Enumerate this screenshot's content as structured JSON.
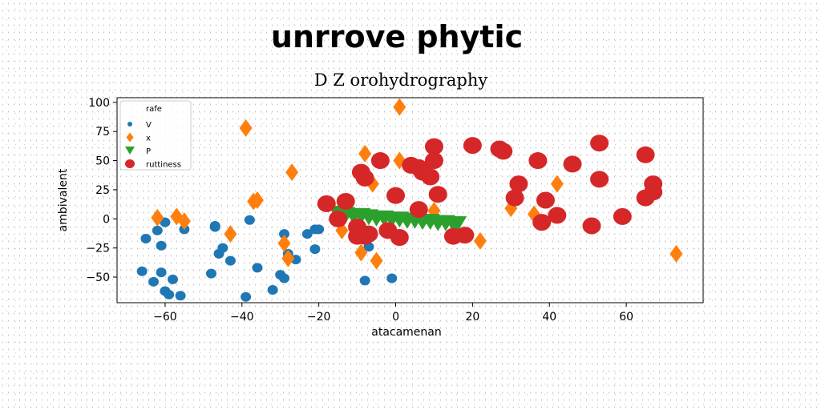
{
  "chart_data": {
    "type": "scatter",
    "title": "unrrove phytic",
    "subtitle": "D Z orohydrography",
    "xlabel": "atacamenan",
    "ylabel": "ambivalent",
    "xlim": [
      -72.5,
      80
    ],
    "ylim": [
      -72,
      104
    ],
    "xticks": [
      -60,
      -40,
      -20,
      0,
      20,
      40,
      60
    ],
    "yticks": [
      -50,
      -25,
      0,
      25,
      50,
      75,
      100
    ],
    "grid": false,
    "legend_position": "upper-left",
    "legend_title": "rafe",
    "series": [
      {
        "name": "V",
        "marker": "circle",
        "color": "#1f77b4",
        "points": [
          [
            -66,
            -45
          ],
          [
            -65,
            -17
          ],
          [
            -63,
            -54
          ],
          [
            -62,
            -10
          ],
          [
            -61,
            -46
          ],
          [
            -61,
            -23
          ],
          [
            -60,
            -3
          ],
          [
            -60,
            -62
          ],
          [
            -59,
            -65
          ],
          [
            -58,
            -52
          ],
          [
            -56,
            -66
          ],
          [
            -55,
            -9
          ],
          [
            -48,
            -47
          ],
          [
            -47,
            -7
          ],
          [
            -47,
            -6
          ],
          [
            -46,
            -30
          ],
          [
            -45,
            -25
          ],
          [
            -43,
            -36
          ],
          [
            -39,
            -67
          ],
          [
            -38,
            -1
          ],
          [
            -36,
            -42
          ],
          [
            -32,
            -61
          ],
          [
            -30,
            -48
          ],
          [
            -29,
            -51
          ],
          [
            -29,
            -13
          ],
          [
            -28,
            -30
          ],
          [
            -26,
            -35
          ],
          [
            -23,
            -13
          ],
          [
            -21,
            -9
          ],
          [
            -21,
            -26
          ],
          [
            -20,
            -9
          ],
          [
            -8,
            -53
          ],
          [
            -7,
            -24
          ],
          [
            -1,
            -51
          ]
        ]
      },
      {
        "name": "x",
        "marker": "diamond",
        "color": "#ff7f0e",
        "points": [
          [
            -62,
            1
          ],
          [
            -57,
            2
          ],
          [
            -55,
            -2
          ],
          [
            -43,
            -13
          ],
          [
            -39,
            78
          ],
          [
            -37,
            15
          ],
          [
            -36,
            16
          ],
          [
            -29,
            -21
          ],
          [
            -28,
            -34
          ],
          [
            -27,
            40
          ],
          [
            -14,
            -10
          ],
          [
            -9,
            -29
          ],
          [
            -9,
            -14
          ],
          [
            -8,
            56
          ],
          [
            -6,
            30
          ],
          [
            -5,
            -36
          ],
          [
            1,
            50
          ],
          [
            1,
            96
          ],
          [
            5,
            45
          ],
          [
            10,
            7
          ],
          [
            22,
            -19
          ],
          [
            30,
            9
          ],
          [
            36,
            4
          ],
          [
            42,
            30
          ],
          [
            73,
            -30
          ]
        ]
      },
      {
        "name": "P",
        "marker": "triangle-down",
        "color": "#2ca02c",
        "points": [
          [
            -15,
            5
          ],
          [
            -13,
            4
          ],
          [
            -11,
            3
          ],
          [
            -9,
            3
          ],
          [
            -7,
            2
          ],
          [
            -5,
            1
          ],
          [
            -3,
            1
          ],
          [
            -1,
            0
          ],
          [
            1,
            0
          ],
          [
            3,
            -1
          ],
          [
            5,
            -1
          ],
          [
            7,
            -2
          ],
          [
            9,
            -2
          ],
          [
            11,
            -3
          ],
          [
            13,
            -3
          ],
          [
            15,
            -4
          ],
          [
            16,
            -4
          ]
        ]
      },
      {
        "name": "ruttiness",
        "marker": "circle",
        "color": "#d62728",
        "points": [
          [
            -18,
            13
          ],
          [
            -15,
            0
          ],
          [
            -13,
            15
          ],
          [
            -10,
            -7
          ],
          [
            -10,
            -15
          ],
          [
            -9,
            40
          ],
          [
            -8,
            35
          ],
          [
            -8,
            -15
          ],
          [
            -7,
            -13
          ],
          [
            -4,
            50
          ],
          [
            -2,
            -10
          ],
          [
            0,
            20
          ],
          [
            1,
            -16
          ],
          [
            4,
            46
          ],
          [
            6,
            8
          ],
          [
            6,
            44
          ],
          [
            7,
            40
          ],
          [
            9,
            36
          ],
          [
            10,
            50
          ],
          [
            10,
            62
          ],
          [
            11,
            21
          ],
          [
            15,
            -15
          ],
          [
            18,
            -14
          ],
          [
            20,
            63
          ],
          [
            27,
            60
          ],
          [
            28,
            58
          ],
          [
            31,
            18
          ],
          [
            32,
            30
          ],
          [
            37,
            50
          ],
          [
            38,
            -3
          ],
          [
            39,
            16
          ],
          [
            42,
            3
          ],
          [
            46,
            47
          ],
          [
            51,
            -6
          ],
          [
            53,
            65
          ],
          [
            53,
            34
          ],
          [
            59,
            2
          ],
          [
            65,
            55
          ],
          [
            65,
            18
          ],
          [
            67,
            30
          ],
          [
            67,
            23
          ]
        ]
      }
    ]
  }
}
